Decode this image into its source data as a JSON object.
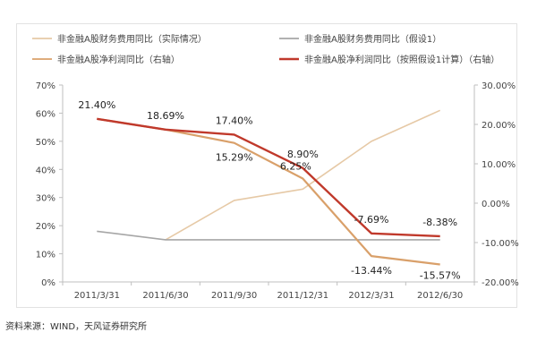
{
  "chart_data": {
    "type": "line",
    "categories": [
      "2011/3/31",
      "2011/6/30",
      "2011/9/30",
      "2011/12/31",
      "2012/3/31",
      "2012/6/30"
    ],
    "y_left": {
      "ylim": [
        0,
        70
      ],
      "ticks": [
        "0%",
        "10%",
        "20%",
        "30%",
        "40%",
        "50%",
        "60%",
        "70%"
      ]
    },
    "y_right": {
      "ylim": [
        -20,
        30
      ],
      "ticks": [
        "-20.00%",
        "-10.00%",
        "0.00%",
        "10.00%",
        "20.00%",
        "30.00%"
      ]
    },
    "grid": false,
    "series": [
      {
        "name": "非金融A股财务费用同比（实际情况）",
        "axis": "left",
        "color": "#e6c9a6",
        "values": [
          null,
          15,
          29,
          33,
          50,
          61
        ],
        "labels": [
          null,
          null,
          null,
          null,
          null,
          null
        ]
      },
      {
        "name": "非金融A股财务费用同比（假设1）",
        "axis": "left",
        "color": "#a6a6a6",
        "values": [
          18,
          15,
          15,
          15,
          15,
          15
        ],
        "labels": [
          null,
          null,
          null,
          null,
          null,
          null
        ]
      },
      {
        "name": "非金融A股净利润同比（右轴）",
        "axis": "right",
        "color": "#d9a06a",
        "values": [
          21.4,
          18.69,
          15.29,
          6.25,
          -13.44,
          -15.57
        ],
        "labels": [
          null,
          null,
          "15.29%",
          "6.25%",
          "-13.44%",
          "-15.57%"
        ]
      },
      {
        "name": "非金融A股净利润同比（按照假设1计算）（右轴）",
        "axis": "right",
        "color": "#c0392b",
        "values": [
          21.4,
          18.69,
          17.4,
          8.9,
          -7.69,
          -8.38
        ],
        "labels": [
          "21.40%",
          "18.69%",
          "17.40%",
          "8.90%",
          "-7.69%",
          "-8.38%"
        ]
      }
    ]
  },
  "source": "资料来源：WIND，天风证券研究所"
}
